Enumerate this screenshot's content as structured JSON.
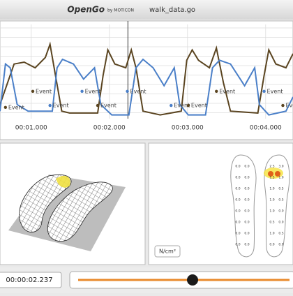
{
  "header": {
    "app": "OpenGo",
    "brand": "by MOTICON",
    "file": "walk_data.go"
  },
  "chart_data": {
    "type": "line",
    "xlim": [
      0.6,
      4.35
    ],
    "ylim": [
      0,
      100
    ],
    "xticks": [
      {
        "value": 1,
        "label": "00:01.000"
      },
      {
        "value": 2,
        "label": "00:02.000"
      },
      {
        "value": 3,
        "label": "00:03.000"
      },
      {
        "value": 4,
        "label": "00:04.000"
      }
    ],
    "grid": true,
    "cursor": 2.237,
    "series": [
      {
        "color": "#5a4420",
        "x": [
          0.6,
          0.78,
          0.91,
          1.05,
          1.18,
          1.24,
          1.31,
          1.39,
          1.49,
          1.85,
          1.92,
          1.98,
          2.07,
          2.21,
          2.28,
          2.34,
          2.43,
          2.65,
          2.92,
          2.99,
          3.06,
          3.14,
          3.28,
          3.37,
          3.46,
          3.55,
          3.9,
          3.98,
          4.04,
          4.13,
          4.26,
          4.35
        ],
        "values": [
          15,
          58,
          60,
          54,
          65,
          79,
          46,
          8,
          6,
          6,
          46,
          73,
          58,
          54,
          73,
          54,
          8,
          4,
          8,
          62,
          73,
          62,
          54,
          75,
          38,
          8,
          6,
          46,
          73,
          58,
          54,
          69
        ]
      },
      {
        "color": "#4a7fc8",
        "x": [
          0.6,
          0.67,
          0.73,
          0.82,
          0.96,
          1.27,
          1.33,
          1.4,
          1.54,
          1.67,
          1.81,
          1.89,
          2.03,
          2.25,
          2.34,
          2.43,
          2.56,
          2.7,
          2.83,
          2.9,
          3.01,
          3.23,
          3.32,
          3.41,
          3.55,
          3.73,
          3.86,
          3.92,
          4.04,
          4.26,
          4.35
        ],
        "values": [
          8,
          58,
          54,
          15,
          8,
          8,
          54,
          63,
          58,
          42,
          54,
          15,
          4,
          4,
          54,
          63,
          54,
          35,
          54,
          15,
          4,
          4,
          54,
          62,
          58,
          35,
          54,
          15,
          4,
          8,
          23
        ]
      }
    ],
    "events": [
      {
        "x": 0.67,
        "y": 12,
        "series": 0,
        "label": "Event"
      },
      {
        "x": 1.02,
        "y": 29,
        "series": 0,
        "label": "Event"
      },
      {
        "x": 1.24,
        "y": 14,
        "series": 1,
        "label": "Event"
      },
      {
        "x": 1.65,
        "y": 29,
        "series": 1,
        "label": "Event"
      },
      {
        "x": 1.85,
        "y": 14,
        "series": 0,
        "label": "Event"
      },
      {
        "x": 2.23,
        "y": 29,
        "series": 1,
        "label": "Event"
      },
      {
        "x": 2.79,
        "y": 14,
        "series": 1,
        "label": "Event"
      },
      {
        "x": 3.01,
        "y": 14,
        "series": 0,
        "label": "Event"
      },
      {
        "x": 3.37,
        "y": 29,
        "series": 0,
        "label": "Event"
      },
      {
        "x": 3.98,
        "y": 29,
        "series": 1,
        "label": "Event"
      },
      {
        "x": 4.22,
        "y": 14,
        "series": 0,
        "label": "Event"
      }
    ]
  },
  "pressure": {
    "unit": "N/cm²",
    "left": [
      "0.0",
      "0.0",
      "0.0",
      "0.0",
      "0.0",
      "0.0",
      "0.0",
      "0.0",
      "0.0",
      "0.0",
      "0.0",
      "0.0",
      "0.0",
      "0.0",
      "0.0",
      "0.0"
    ],
    "right": [
      "2.5",
      "3.0",
      "1.5",
      "1.0",
      "1.0",
      "0.5",
      "1.0",
      "0.5",
      "1.0",
      "0.0",
      "0.5",
      "0.0",
      "1.0",
      "0.5",
      "0.0",
      "0.0"
    ]
  },
  "player": {
    "time": "00:00:02.237"
  }
}
